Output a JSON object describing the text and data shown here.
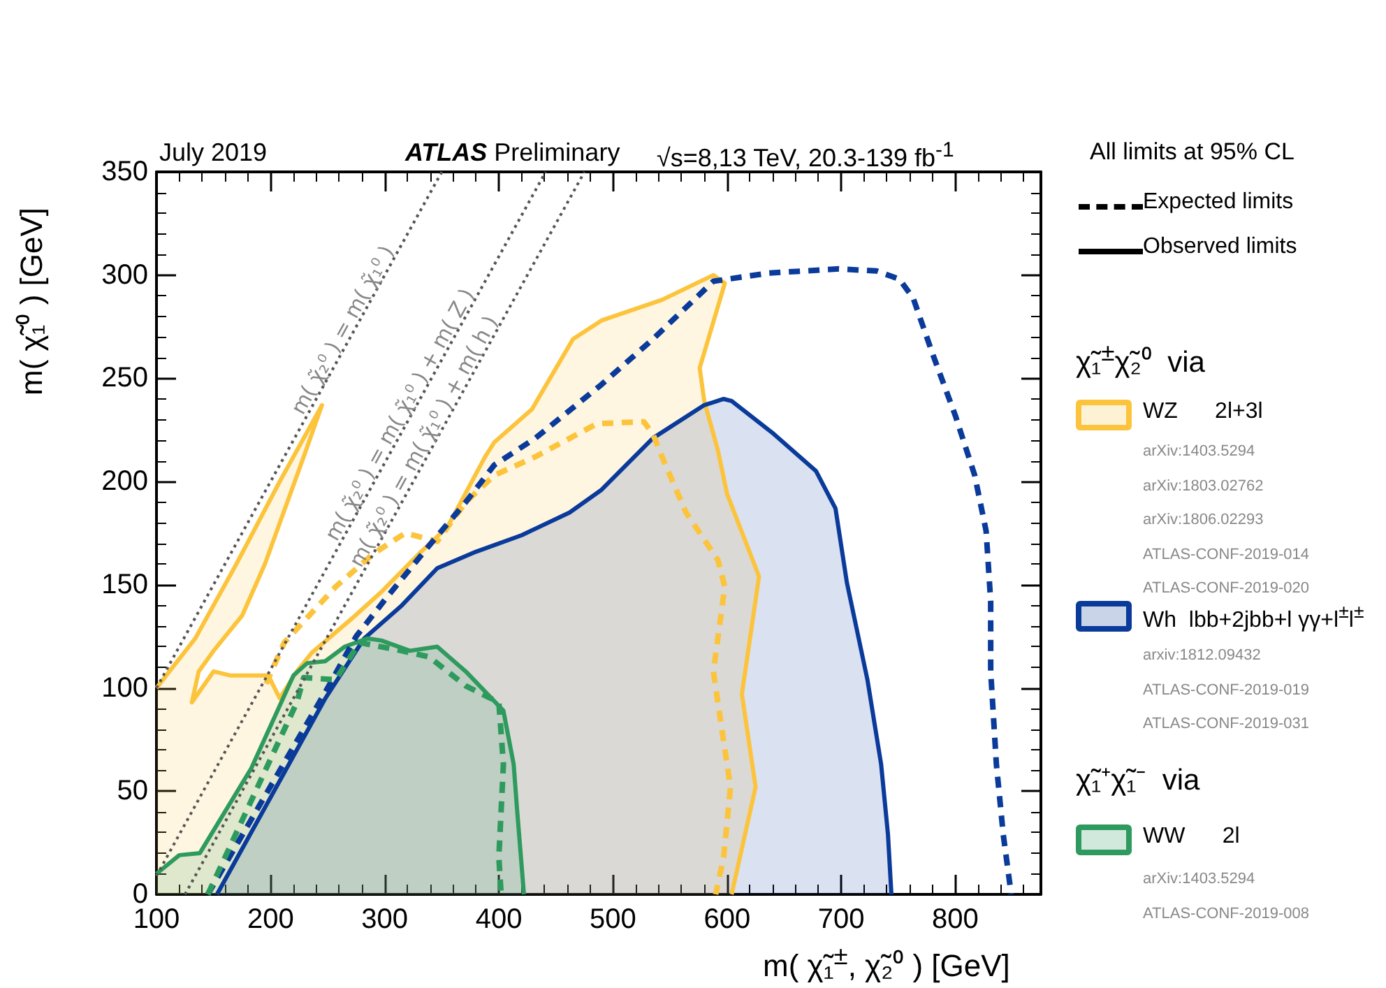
{
  "chart_data": {
    "type": "line",
    "title": "ATLAS Preliminary",
    "subtitle": "√s=8,13 TeV, 20.3-139 fb$^{-1}$",
    "xlabel": "m( χ̃₁$^{±}$, χ̃₂⁰ ) [GeV]",
    "ylabel": "m( χ̃₁⁰ ) [GeV]",
    "xlim": [
      100,
      875
    ],
    "xticks": [
      100,
      200,
      300,
      400,
      500,
      600,
      700,
      800
    ],
    "ylim": [
      0,
      350
    ],
    "yticks": [
      0,
      50,
      100,
      150,
      200,
      250,
      300,
      350
    ],
    "grid": false,
    "marker": "none",
    "legend": "right",
    "annotations": [
      "July 2019",
      "All limits at 95% CL",
      "Expected limits",
      "Observed limits",
      "χ̃₁$^{±}$χ̃₂⁰  via",
      "arXiv:1403.5294",
      "arXiv:1803.02762",
      "arXiv:1806.02293",
      "ATLAS-CONF-2019-014",
      "ATLAS-CONF-2019-020",
      "arxiv:1812.09432",
      "ATLAS-CONF-2019-019",
      "ATLAS-CONF-2019-031",
      "χ̃₁⁺χ̃₁⁻  via",
      "arXiv:1403.5294",
      "ATLAS-CONF-2019-008"
    ],
    "series": [
      {
        "name": "WZ      2l+3l",
        "type": "area",
        "color": "#fcc43c",
        "line_style": "solid",
        "x": [
          100,
          134,
          170,
          208,
          245,
          229,
          195,
          175,
          150,
          137,
          131,
          150,
          165,
          198,
          208,
          223,
          236,
          272,
          298,
          330,
          355,
          388,
          396,
          429,
          465,
          490,
          543,
          588,
          598,
          576,
          580,
          592,
          600,
          628,
          613,
          625,
          604
        ],
        "values": [
          100,
          124,
          160,
          200,
          237,
          212,
          160,
          135,
          118,
          108,
          93,
          108,
          106,
          106,
          95,
          108,
          117,
          134,
          147,
          165,
          178,
          212,
          219,
          235,
          269,
          278,
          288,
          300,
          296,
          255,
          239,
          215,
          194,
          154,
          97,
          52,
          0
        ]
      },
      {
        "type": "line",
        "color": "#fcc43c",
        "line_style": "dashed",
        "x": [
          196,
          212,
          257,
          290,
          318,
          346,
          371,
          396,
          432,
          486,
          527,
          535,
          543,
          564,
          592,
          598,
          588,
          597,
          603,
          597,
          590
        ],
        "values": [
          102,
          122,
          149,
          165,
          175,
          171,
          190,
          203,
          212,
          228,
          229,
          223,
          212,
          185,
          162,
          149,
          108,
          74,
          52,
          18,
          0
        ]
      },
      {
        "name": "Wh  lbb+2jbb+l γγ+l$^{±}$l$^{±}$",
        "type": "area",
        "color": "#0a3a9a",
        "line_style": "solid",
        "x": [
          153,
          248,
          282,
          315,
          346,
          380,
          420,
          462,
          490,
          535,
          580,
          597,
          604,
          641,
          678,
          695,
          705,
          723,
          735,
          741,
          744
        ],
        "values": [
          0,
          95,
          124,
          140,
          158,
          166,
          174,
          185,
          196,
          221,
          237,
          240,
          239,
          223,
          205,
          187,
          151,
          104,
          63,
          29,
          0
        ]
      },
      {
        "type": "line",
        "color": "#0a3a9a",
        "line_style": "dashed",
        "x": [
          145,
          250,
          275,
          302,
          339,
          371,
          396,
          432,
          490,
          535,
          588,
          600,
          637,
          698,
          731,
          751,
          763,
          780,
          800,
          817,
          827,
          831,
          831,
          836,
          842,
          849
        ],
        "values": [
          0,
          100,
          125,
          144,
          169,
          190,
          208,
          221,
          247,
          269,
          297,
          298,
          301,
          303,
          302,
          298,
          289,
          262,
          232,
          203,
          176,
          142,
          108,
          63,
          29,
          0
        ]
      },
      {
        "name": "WW      2l",
        "type": "area",
        "color": "#2e9a5e",
        "line_style": "solid",
        "x": [
          100,
          120,
          138,
          183,
          220,
          232,
          248,
          265,
          285,
          297,
          322,
          346,
          371,
          404,
          413,
          416,
          422
        ],
        "values": [
          10,
          19,
          20,
          61,
          106,
          112,
          113,
          120,
          124,
          123,
          118,
          120,
          108,
          89,
          63,
          41,
          0
        ]
      },
      {
        "type": "line",
        "color": "#2e9a5e",
        "line_style": "dashed",
        "x": [
          145,
          223,
          229,
          257,
          278,
          315,
          339,
          371,
          400,
          404,
          400,
          402
        ],
        "values": [
          0,
          93,
          105,
          104,
          122,
          118,
          115,
          101,
          93,
          63,
          18,
          0
        ]
      },
      {
        "name": "m( χ̃₂⁰ ) = m( χ̃₁⁰ )",
        "type": "line",
        "color": "#555555",
        "line_style": "dotted",
        "x": [
          100,
          271,
          350
        ],
        "values": [
          100,
          271,
          350
        ]
      },
      {
        "name": "m( χ̃₂⁰ ) = m( χ̃₁⁰ ) + m( Z )",
        "type": "line",
        "color": "#555555",
        "line_style": "dotted",
        "x": [
          100,
          321,
          441
        ],
        "values": [
          9,
          230,
          350
        ]
      },
      {
        "name": "m( χ̃₂⁰ ) = m( χ̃₁⁰ ) + m( h )",
        "type": "line",
        "color": "#555555",
        "line_style": "dotted",
        "x": [
          125,
          342,
          475
        ],
        "values": [
          0,
          217,
          350
        ]
      }
    ]
  }
}
